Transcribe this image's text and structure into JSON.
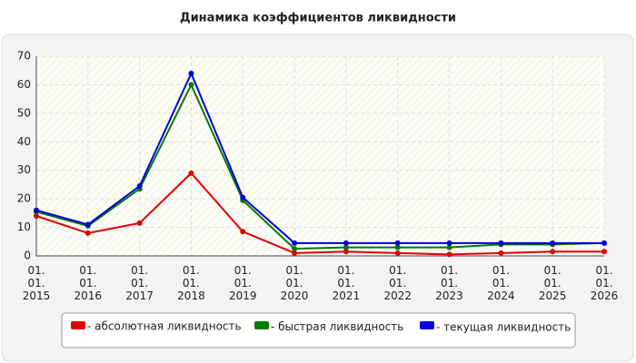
{
  "chart_data": {
    "type": "line",
    "title": "Динамика коэффициентов ликвидности",
    "categories": [
      "01. 01. 2015",
      "01. 01. 2016",
      "01. 01. 2017",
      "01. 01. 2018",
      "01. 01. 2019",
      "01. 01. 2020",
      "01. 01. 2021",
      "01. 01. 2022",
      "01. 01. 2023",
      "01. 01. 2024",
      "01. 01. 2025",
      "01. 01. 2026"
    ],
    "series": [
      {
        "name": "- абсолютная ликвидность",
        "color": "#e00000",
        "values": [
          14,
          8,
          11.5,
          29,
          8.5,
          1,
          1.5,
          1,
          0.5,
          1,
          1.5,
          1.5
        ]
      },
      {
        "name": "- быстрая ликвидность",
        "color": "#007a00",
        "values": [
          15.5,
          10.5,
          23.5,
          60,
          19.5,
          2.5,
          3,
          3,
          3,
          4,
          4,
          4.5
        ]
      },
      {
        "name": "- текущая ликвидность",
        "color": "#0000e0",
        "values": [
          16,
          11,
          24.5,
          64,
          20.5,
          4.5,
          4.5,
          4.5,
          4.5,
          4.5,
          4.5,
          4.5
        ]
      }
    ],
    "ylim": [
      0,
      70
    ],
    "yticks": [
      0,
      10,
      20,
      30,
      40,
      50,
      60,
      70
    ],
    "grid": true
  }
}
